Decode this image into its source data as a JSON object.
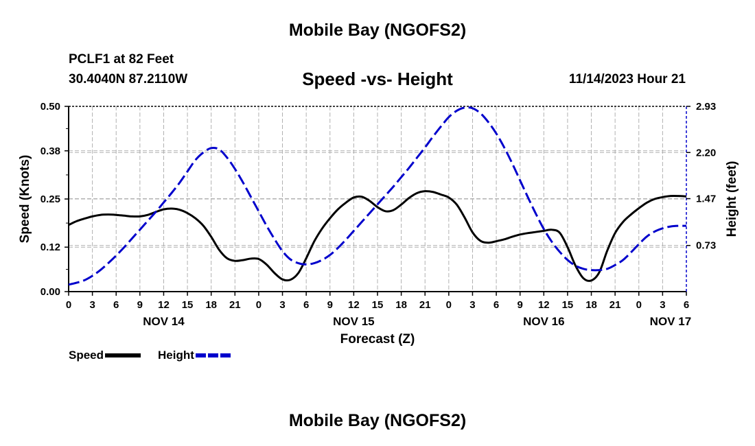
{
  "header": {
    "title": "Mobile Bay (NGOFS2)",
    "station": "PCLF1 at 82 Feet",
    "coords": "30.4040N  87.2110W",
    "subtitle": "Speed -vs- Height",
    "datetime": "11/14/2023 Hour 21"
  },
  "footer": {
    "title": "Mobile Bay (NGOFS2)"
  },
  "legend": {
    "speed_label": "Speed",
    "height_label": "Height"
  },
  "colors": {
    "speed": "#000000",
    "height": "#0000cc",
    "grid": "#b0b0b0"
  },
  "chart_data": {
    "type": "line",
    "title": "Speed -vs- Height",
    "xlabel": "Forecast (Z)",
    "ylabel": "Speed (Knots)",
    "y2label": "Height (feet)",
    "x_unit": "forecast hour from 11/14 00Z",
    "xlim": [
      0,
      78
    ],
    "ylim": [
      0,
      0.5
    ],
    "y2lim": [
      0,
      2.93
    ],
    "x_ticks": [
      0,
      3,
      6,
      9,
      12,
      15,
      18,
      21,
      24,
      27,
      30,
      33,
      36,
      39,
      42,
      45,
      48,
      51,
      54,
      57,
      60,
      63,
      66,
      69,
      72,
      75,
      78
    ],
    "x_tick_labels": [
      "0",
      "3",
      "6",
      "9",
      "12",
      "15",
      "18",
      "21",
      "0",
      "3",
      "6",
      "9",
      "12",
      "15",
      "18",
      "21",
      "0",
      "3",
      "6",
      "9",
      "12",
      "15",
      "18",
      "21",
      "0",
      "3",
      "6"
    ],
    "day_labels": [
      {
        "x": 12,
        "label": "NOV 14"
      },
      {
        "x": 36,
        "label": "NOV 15"
      },
      {
        "x": 60,
        "label": "NOV 16"
      },
      {
        "x": 76,
        "label": "NOV 17"
      }
    ],
    "y_ticks": [
      0.0,
      0.12,
      0.25,
      0.38,
      0.5
    ],
    "y_tick_labels": [
      "0.00",
      "0.12",
      "0.25",
      "0.38",
      "0.50"
    ],
    "y2_ticks": [
      0.73,
      1.47,
      2.2,
      2.93
    ],
    "y2_tick_labels": [
      "0.73",
      "1.47",
      "2.20",
      "2.93"
    ],
    "grid": true,
    "series": [
      {
        "name": "Speed",
        "axis": "left",
        "style": "solid",
        "x": [
          0,
          1,
          2,
          3,
          4,
          5,
          6,
          7,
          8,
          9,
          10,
          11,
          12,
          13,
          14,
          15,
          16,
          17,
          18,
          19,
          20,
          21,
          22,
          23,
          24,
          25,
          26,
          27,
          28,
          29,
          30,
          31,
          32,
          33,
          34,
          35,
          36,
          37,
          38,
          39,
          40,
          41,
          42,
          43,
          44,
          45,
          46,
          47,
          48,
          49,
          50,
          51,
          52,
          53,
          54,
          55,
          56,
          57,
          58,
          59,
          60,
          61,
          62,
          63,
          64,
          65,
          66,
          67,
          68,
          69,
          70,
          71,
          72,
          73,
          74,
          75,
          76,
          77,
          78
        ],
        "values": [
          0.18,
          0.19,
          0.197,
          0.203,
          0.207,
          0.208,
          0.207,
          0.205,
          0.203,
          0.203,
          0.207,
          0.215,
          0.222,
          0.224,
          0.221,
          0.212,
          0.198,
          0.178,
          0.148,
          0.113,
          0.09,
          0.083,
          0.085,
          0.089,
          0.088,
          0.073,
          0.05,
          0.033,
          0.032,
          0.05,
          0.09,
          0.135,
          0.17,
          0.198,
          0.222,
          0.24,
          0.254,
          0.256,
          0.245,
          0.228,
          0.217,
          0.22,
          0.235,
          0.253,
          0.266,
          0.271,
          0.269,
          0.262,
          0.254,
          0.235,
          0.2,
          0.16,
          0.137,
          0.132,
          0.136,
          0.141,
          0.148,
          0.154,
          0.158,
          0.161,
          0.164,
          0.167,
          0.159,
          0.12,
          0.07,
          0.036,
          0.03,
          0.052,
          0.11,
          0.158,
          0.188,
          0.208,
          0.225,
          0.24,
          0.25,
          0.255,
          0.258,
          0.258,
          0.257
        ]
      },
      {
        "name": "Height",
        "axis": "right",
        "style": "dashed",
        "x": [
          0,
          1,
          2,
          3,
          4,
          5,
          6,
          7,
          8,
          9,
          10,
          11,
          12,
          13,
          14,
          15,
          16,
          17,
          18,
          19,
          20,
          21,
          22,
          23,
          24,
          25,
          26,
          27,
          28,
          29,
          30,
          31,
          32,
          33,
          34,
          35,
          36,
          37,
          38,
          39,
          40,
          41,
          42,
          43,
          44,
          45,
          46,
          47,
          48,
          49,
          50,
          51,
          52,
          53,
          54,
          55,
          56,
          57,
          58,
          59,
          60,
          61,
          62,
          63,
          64,
          65,
          66,
          67,
          68,
          69,
          70,
          71,
          72,
          73,
          74,
          75,
          76,
          77,
          78
        ],
        "values": [
          0.11,
          0.14,
          0.18,
          0.25,
          0.34,
          0.45,
          0.57,
          0.7,
          0.84,
          0.98,
          1.12,
          1.26,
          1.41,
          1.56,
          1.72,
          1.9,
          2.08,
          2.2,
          2.27,
          2.25,
          2.12,
          1.94,
          1.73,
          1.5,
          1.27,
          1.04,
          0.83,
          0.64,
          0.51,
          0.45,
          0.43,
          0.45,
          0.5,
          0.58,
          0.69,
          0.82,
          0.96,
          1.1,
          1.24,
          1.38,
          1.52,
          1.66,
          1.81,
          1.96,
          2.12,
          2.28,
          2.45,
          2.61,
          2.76,
          2.86,
          2.91,
          2.9,
          2.82,
          2.68,
          2.5,
          2.28,
          2.03,
          1.76,
          1.49,
          1.23,
          0.99,
          0.79,
          0.63,
          0.5,
          0.41,
          0.36,
          0.34,
          0.34,
          0.36,
          0.42,
          0.5,
          0.62,
          0.75,
          0.87,
          0.95,
          1.0,
          1.03,
          1.04,
          1.04
        ]
      }
    ]
  }
}
